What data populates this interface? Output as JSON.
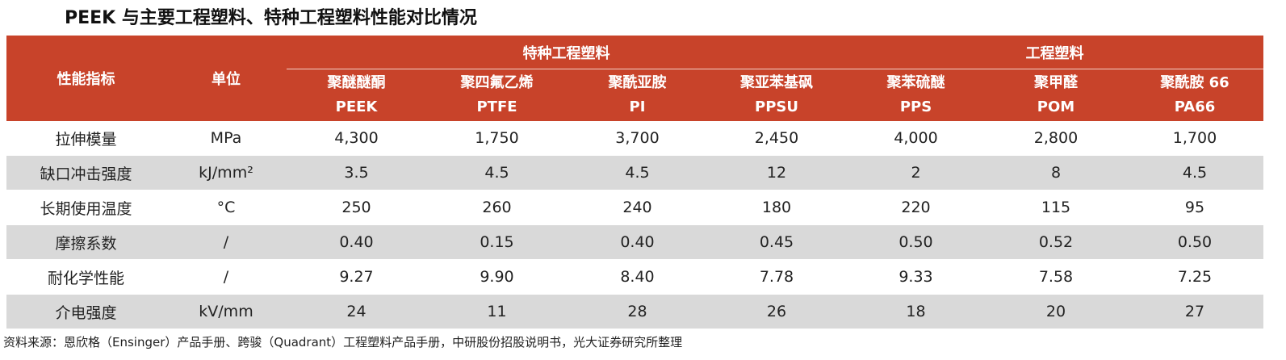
{
  "title": "PEEK 与主要工程塑料、特种工程塑料性能对比情况",
  "table": {
    "header": {
      "metric": "性能指标",
      "unit": "单位",
      "groups": [
        "特种工程塑料",
        "工程塑料"
      ],
      "columns": [
        {
          "name": "聚醚醚酮",
          "code": "PEEK"
        },
        {
          "name": "聚四氟乙烯",
          "code": "PTFE"
        },
        {
          "name": "聚酰亚胺",
          "code": "PI"
        },
        {
          "name": "聚亚苯基砜",
          "code": "PPSU"
        },
        {
          "name": "聚苯硫醚",
          "code": "PPS"
        },
        {
          "name": "聚甲醛",
          "code": "POM"
        },
        {
          "name": "聚酰胺 66",
          "code": "PA66"
        }
      ]
    },
    "rows": [
      [
        "拉伸模量",
        "MPa",
        "4,300",
        "1,750",
        "3,700",
        "2,450",
        "4,000",
        "2,800",
        "1,700"
      ],
      [
        "缺口冲击强度",
        "kJ/mm²",
        "3.5",
        "4.5",
        "4.5",
        "12",
        "2",
        "8",
        "4.5"
      ],
      [
        "长期使用温度",
        "°C",
        "250",
        "260",
        "240",
        "180",
        "220",
        "115",
        "95"
      ],
      [
        "摩擦系数",
        "/",
        "0.40",
        "0.15",
        "0.40",
        "0.45",
        "0.50",
        "0.52",
        "0.50"
      ],
      [
        "耐化学性能",
        "/",
        "9.27",
        "9.90",
        "8.40",
        "7.78",
        "9.33",
        "7.58",
        "7.25"
      ],
      [
        "介电强度",
        "kV/mm",
        "24",
        "11",
        "28",
        "26",
        "18",
        "20",
        "27"
      ]
    ]
  },
  "source": "资料来源：恩欣格（Ensinger）产品手册、跨骏（Quadrant）工程塑料产品手册，中研股份招股说明书，光大证券研究所整理"
}
